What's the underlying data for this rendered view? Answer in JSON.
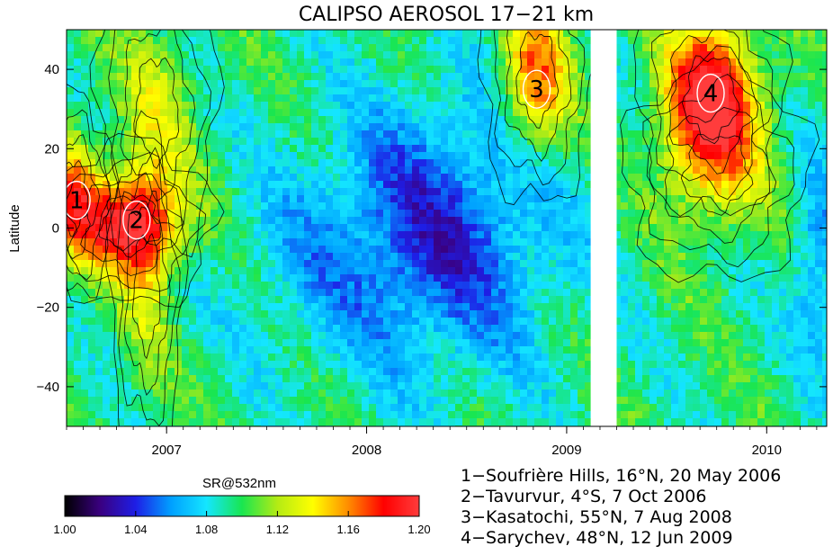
{
  "chart_data": {
    "type": "heatmap",
    "title": "CALIPSO AEROSOL 17−21 km",
    "ylabel": "Latitude",
    "xlabel": "",
    "xlim": [
      2006.5,
      2010.3
    ],
    "ylim": [
      -50,
      50
    ],
    "x_ticks": [
      {
        "value": 2007,
        "label": "2007"
      },
      {
        "value": 2008,
        "label": "2008"
      },
      {
        "value": 2009,
        "label": "2009"
      },
      {
        "value": 2010,
        "label": "2010"
      }
    ],
    "y_ticks": [
      {
        "value": 40,
        "label": "40"
      },
      {
        "value": 20,
        "label": "20"
      },
      {
        "value": 0,
        "label": "0"
      },
      {
        "value": -20,
        "label": "−20"
      },
      {
        "value": -40,
        "label": "−40"
      }
    ],
    "data_gap": [
      2009.12,
      2009.25
    ],
    "colorbar": {
      "title": "SR@532nm",
      "range": [
        1.0,
        1.2
      ],
      "ticks": [
        {
          "value": 1.0,
          "label": "1.00"
        },
        {
          "value": 1.04,
          "label": "1.04"
        },
        {
          "value": 1.08,
          "label": "1.08"
        },
        {
          "value": 1.12,
          "label": "1.12"
        },
        {
          "value": 1.16,
          "label": "1.16"
        },
        {
          "value": 1.2,
          "label": "1.20"
        }
      ],
      "colors": [
        "#000000",
        "#3a0080",
        "#1e1ee6",
        "#00a0ff",
        "#14e6ff",
        "#19e650",
        "#b4eb14",
        "#ffff00",
        "#ff8c00",
        "#ff0000",
        "#ff3c3c"
      ]
    },
    "features": [
      {
        "x": 2006.53,
        "lat": 8,
        "sx": 0.09,
        "sy": 11,
        "amp": 0.06
      },
      {
        "x": 2006.82,
        "lat": 1,
        "sx": 0.18,
        "sy": 9,
        "amp": 0.1
      },
      {
        "x": 2006.9,
        "lat": -16,
        "sx": 0.08,
        "sy": 18,
        "amp": 0.025
      },
      {
        "x": 2006.95,
        "lat": 30,
        "sx": 0.13,
        "sy": 16,
        "amp": 0.03
      },
      {
        "x": 2008.35,
        "lat": -2,
        "sx": 0.42,
        "sy": 24,
        "amp": -0.055
      },
      {
        "x": 2010.25,
        "lat": -8,
        "sx": 0.1,
        "sy": 18,
        "amp": -0.035
      },
      {
        "x": 2008.85,
        "lat": 38,
        "sx": 0.12,
        "sy": 14,
        "amp": 0.07
      },
      {
        "x": 2009.72,
        "lat": 33,
        "sx": 0.16,
        "sy": 13,
        "amp": 0.11
      },
      {
        "x": 2009.75,
        "lat": 14,
        "sx": 0.2,
        "sy": 12,
        "amp": 0.03
      }
    ],
    "eruptions": [
      {
        "label": "1",
        "x": 2006.55,
        "lat": 7
      },
      {
        "label": "2",
        "x": 2006.85,
        "lat": 2
      },
      {
        "label": "3",
        "x": 2008.85,
        "lat": 35
      },
      {
        "label": "4",
        "x": 2009.72,
        "lat": 34
      }
    ],
    "legend": [
      "1−Soufrière Hills, 16°N, 20 May 2006",
      "2−Tavurvur, 4°S, 7 Oct 2006",
      "3−Kasatochi, 55°N, 7 Aug 2008",
      "4−Sarychev, 48°N, 12 Jun 2009"
    ]
  }
}
